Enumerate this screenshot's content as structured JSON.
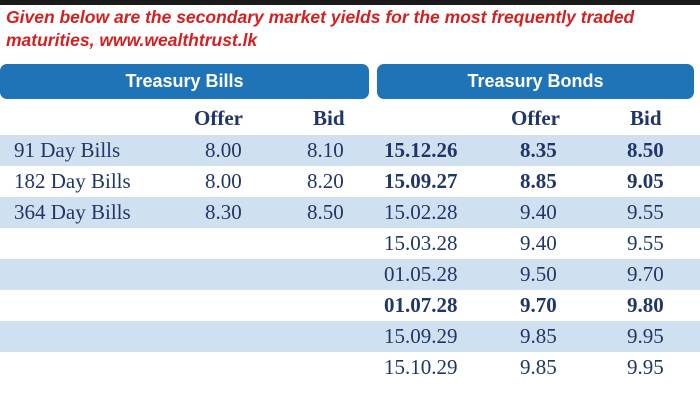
{
  "caption": "Given below are the secondary market yields for the most frequently traded maturities, www.wealthtrust.lk",
  "headers": {
    "bills": "Treasury Bills",
    "bonds": "Treasury Bonds",
    "offer": "Offer",
    "bid": "Bid"
  },
  "bills": [
    {
      "name": "91 Day Bills",
      "offer": "8.00",
      "bid": "8.10"
    },
    {
      "name": "182 Day Bills",
      "offer": "8.00",
      "bid": "8.20"
    },
    {
      "name": "364 Day Bills",
      "offer": "8.30",
      "bid": "8.50"
    }
  ],
  "bonds": [
    {
      "maturity": "15.12.26",
      "offer": "8.35",
      "bid": "8.50",
      "bold": true
    },
    {
      "maturity": "15.09.27",
      "offer": "8.85",
      "bid": "9.05",
      "bold": true
    },
    {
      "maturity": "15.02.28",
      "offer": "9.40",
      "bid": "9.55",
      "bold": false
    },
    {
      "maturity": "15.03.28",
      "offer": "9.40",
      "bid": "9.55",
      "bold": false
    },
    {
      "maturity": "01.05.28",
      "offer": "9.50",
      "bid": "9.70",
      "bold": false
    },
    {
      "maturity": "01.07.28",
      "offer": "9.70",
      "bid": "9.80",
      "bold": true
    },
    {
      "maturity": "15.09.29",
      "offer": "9.85",
      "bid": "9.95",
      "bold": false
    },
    {
      "maturity": "15.10.29",
      "offer": "9.85",
      "bid": "9.95",
      "bold": false
    }
  ],
  "colors": {
    "header_bg": "#1f74b8",
    "stripe": "#cfe0f1",
    "text": "#1f3668",
    "caption": "#d42020"
  }
}
